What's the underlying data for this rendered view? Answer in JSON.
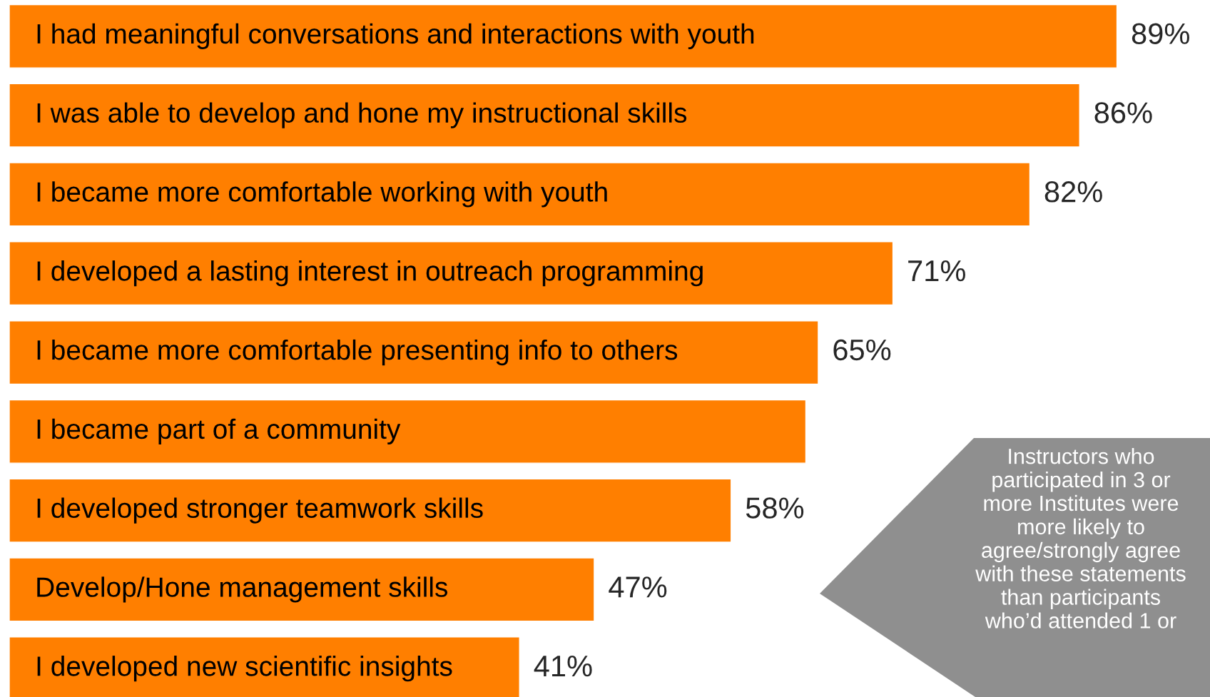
{
  "chart_data": {
    "type": "bar",
    "orientation": "horizontal",
    "color": "#ff7f00",
    "categories": [
      "I had meaningful conversations and interactions with youth",
      "I was able to develop and hone my instructional skills",
      "I became more comfortable working with youth",
      "I developed a lasting interest in outreach programming",
      "I became more comfortable presenting info to others",
      "I became part of a community",
      "I developed stronger teamwork skills",
      "Develop/Hone management skills",
      "I developed new scientific insights"
    ],
    "values": [
      89,
      86,
      82,
      71,
      65,
      64,
      58,
      47,
      41
    ],
    "value_labels": [
      "89%",
      "86%",
      "82%",
      "71%",
      "65%",
      null,
      "58%",
      "47%",
      "41%"
    ],
    "annotations": [
      "Instructors who\nparticipated in 3 or\nmore Institutes were\nmore likely to\nagree/strongly agree\nwith these statements\nthan participants\nwho’d attended 1 or"
    ],
    "legend": false
  }
}
